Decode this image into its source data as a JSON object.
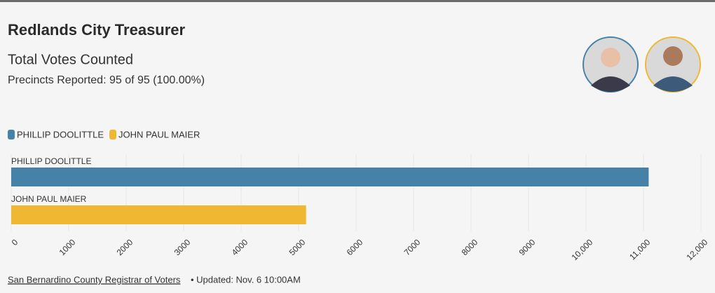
{
  "chart_data": {
    "type": "bar",
    "orientation": "horizontal",
    "title": "Redlands City Treasurer",
    "subtitle": "Total Votes Counted",
    "note": "Precincts Reported: 95 of 95 (100.00%)",
    "categories": [
      "PHILLIP DOOLITTLE",
      "JOHN PAUL MAIER"
    ],
    "values": [
      11090,
      5130
    ],
    "colors": [
      "#4682a8",
      "#f0b732"
    ],
    "xlim": [
      0,
      12000
    ],
    "xticks": [
      0,
      1000,
      2000,
      3000,
      4000,
      5000,
      6000,
      7000,
      8000,
      9000,
      {
        "value": 10000,
        "label": "10,000"
      },
      {
        "value": 11000,
        "label": "11,000"
      },
      {
        "value": 12000,
        "label": "12,000"
      }
    ],
    "grid": true,
    "source": "San Bernardino County Registrar of Voters",
    "updated": "• Updated: Nov. 6 10:00AM"
  }
}
